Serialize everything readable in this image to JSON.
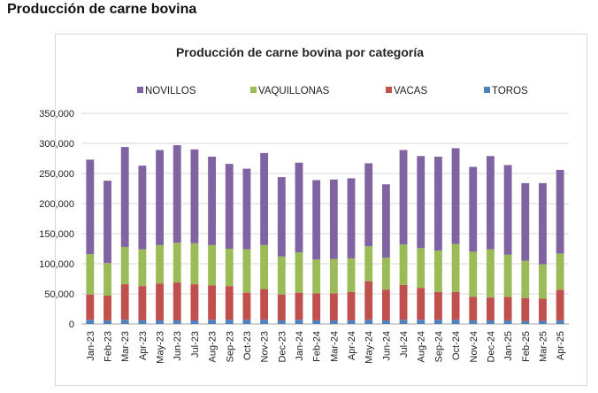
{
  "page": {
    "heading": "Producción de carne bovina"
  },
  "chart_data": {
    "type": "bar",
    "stacked": true,
    "title": "Producción de carne bovina por categoría",
    "xlabel": "",
    "ylabel": "",
    "ylim": [
      0,
      350000
    ],
    "yticks": [
      0,
      50000,
      100000,
      150000,
      200000,
      250000,
      300000,
      350000
    ],
    "ytick_labels": [
      "0",
      "50,000",
      "100,000",
      "150,000",
      "200,000",
      "250,000",
      "300,000",
      "350,000"
    ],
    "grid": true,
    "legend_position": "top",
    "legend_order": [
      "NOVILLOS",
      "VAQUILLONAS",
      "VACAS",
      "TOROS"
    ],
    "categories": [
      "Jan-23",
      "Feb-23",
      "Mar-23",
      "Apr-23",
      "May-23",
      "Jun-23",
      "Jul-23",
      "Aug-23",
      "Sep-23",
      "Oct-23",
      "Nov-23",
      "Dec-23",
      "Jan-24",
      "Feb-24",
      "Mar-24",
      "Apr-24",
      "May-24",
      "Jun-24",
      "Jul-24",
      "Aug-24",
      "Sep-24",
      "Oct-24",
      "Nov-24",
      "Dec-24",
      "Jan-25",
      "Feb-25",
      "Mar-25",
      "Apr-25"
    ],
    "series": [
      {
        "name": "TOROS",
        "color": "#4f81bd",
        "values": [
          7000,
          6000,
          7000,
          6000,
          6000,
          6000,
          6000,
          7000,
          7000,
          7000,
          7000,
          6000,
          7000,
          6000,
          6000,
          6000,
          7000,
          6000,
          7000,
          7000,
          7000,
          7000,
          6000,
          6000,
          6000,
          5000,
          5000,
          6000
        ]
      },
      {
        "name": "VACAS",
        "color": "#c0504d",
        "values": [
          42000,
          41000,
          59000,
          57000,
          61000,
          63000,
          60000,
          57000,
          56000,
          45000,
          51000,
          43000,
          45000,
          45000,
          45000,
          47000,
          64000,
          51000,
          58000,
          53000,
          46000,
          46000,
          39000,
          38000,
          39000,
          38000,
          37000,
          51000
        ]
      },
      {
        "name": "VAQUILLONAS",
        "color": "#9bbb59",
        "values": [
          67000,
          54000,
          62000,
          61000,
          64000,
          66000,
          68000,
          67000,
          62000,
          72000,
          73000,
          63000,
          67000,
          56000,
          57000,
          56000,
          58000,
          53000,
          67000,
          66000,
          69000,
          80000,
          75000,
          80000,
          70000,
          62000,
          57000,
          60000
        ]
      },
      {
        "name": "NOVILLOS",
        "color": "#8064a2",
        "values": [
          157000,
          137000,
          166000,
          139000,
          158000,
          162000,
          156000,
          147000,
          141000,
          134000,
          153000,
          132000,
          149000,
          132000,
          132000,
          133000,
          138000,
          122000,
          157000,
          153000,
          156000,
          159000,
          141000,
          155000,
          149000,
          129000,
          135000,
          139000
        ]
      }
    ]
  }
}
